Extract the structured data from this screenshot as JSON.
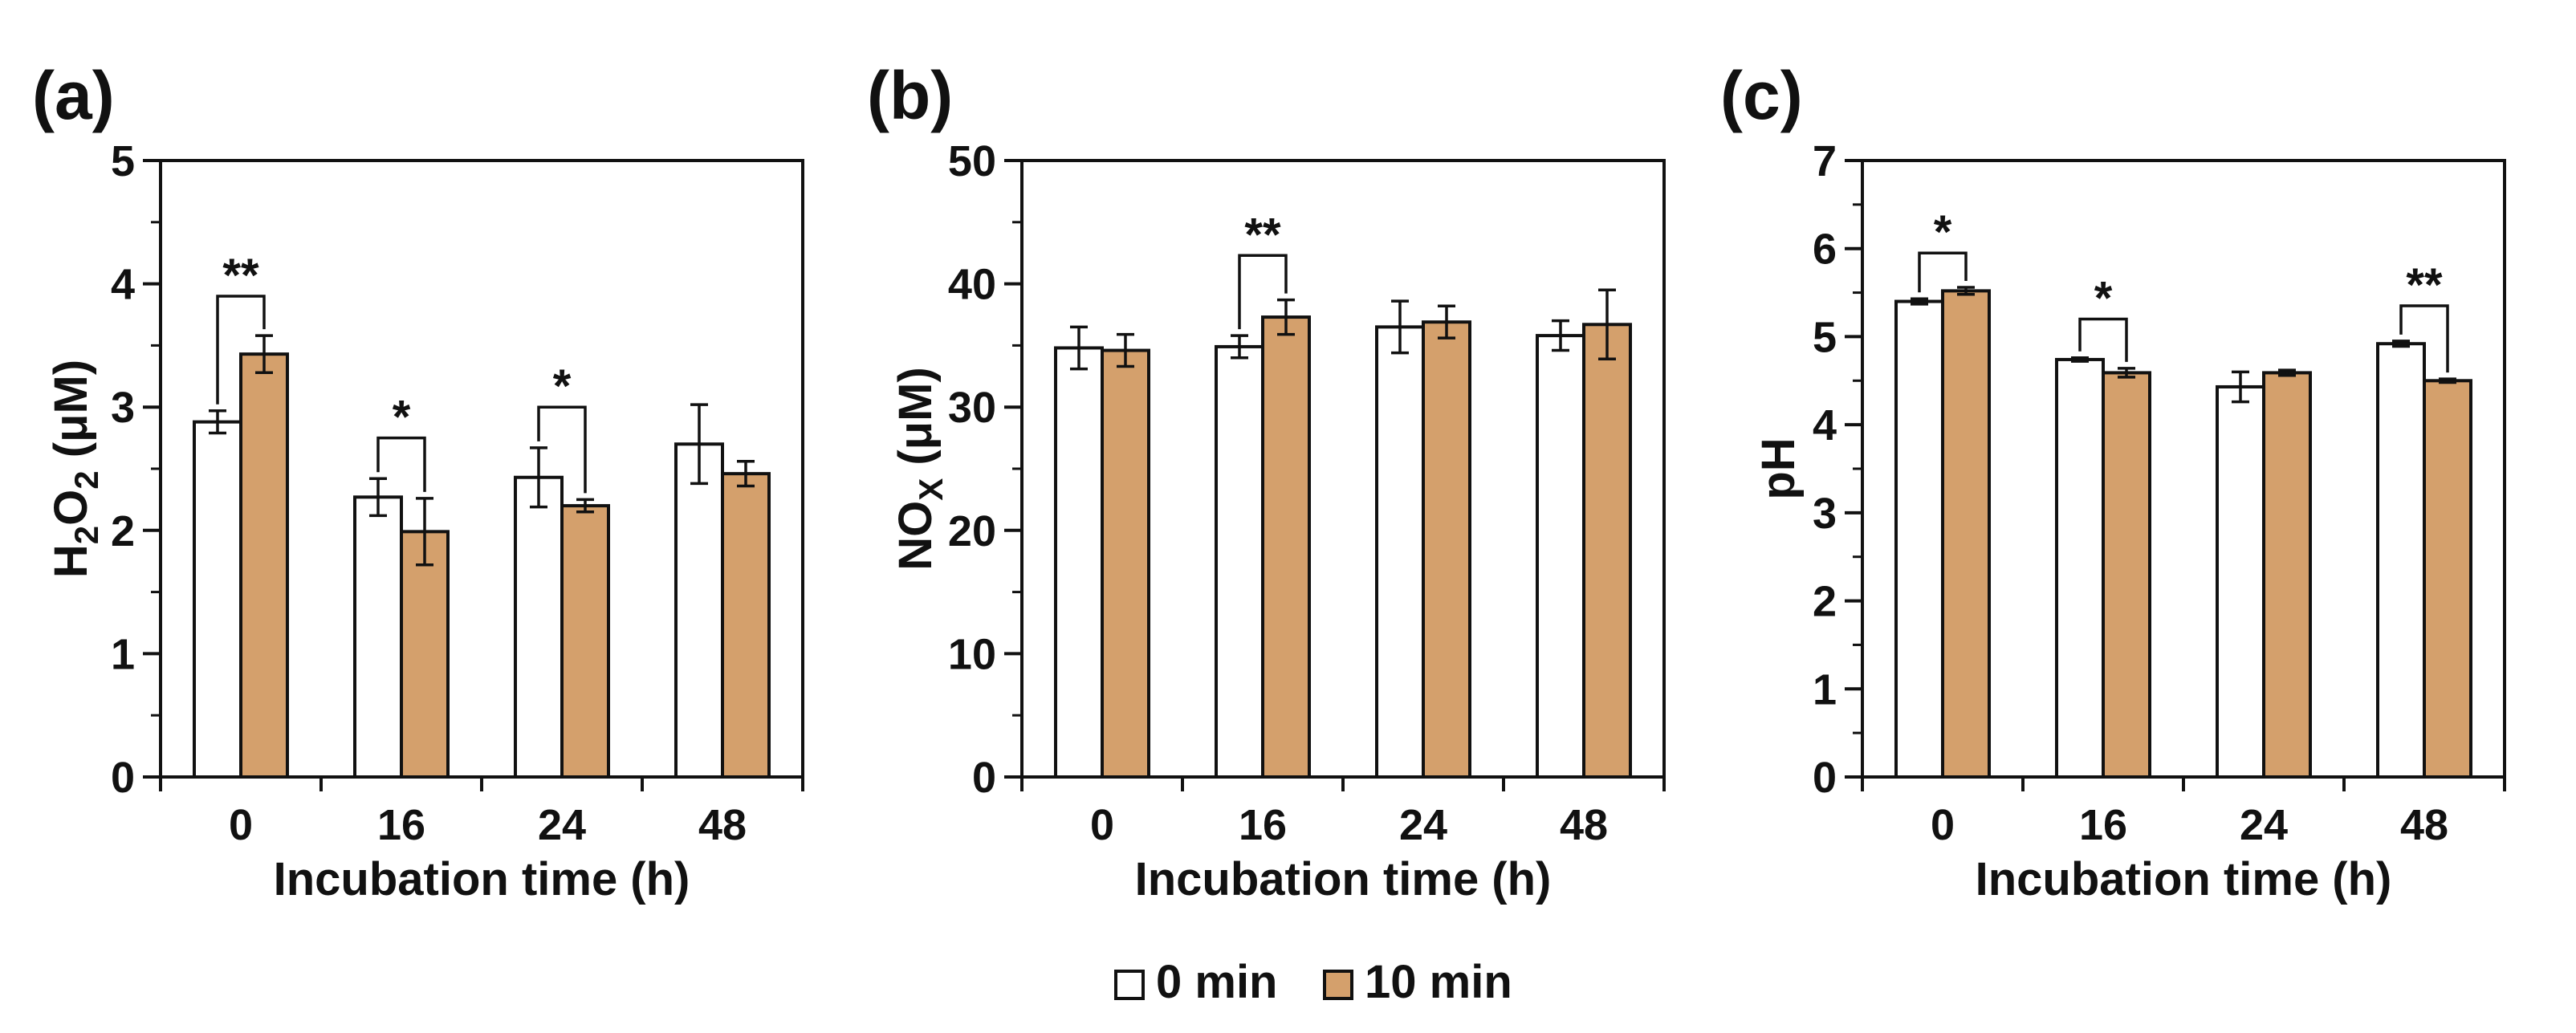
{
  "colors": {
    "series_0": "#ffffff",
    "series_1": "#d4a06c",
    "stroke": "#111111"
  },
  "legend": {
    "items": [
      "0 min",
      "10 min"
    ]
  },
  "chart_data": [
    {
      "type": "bar",
      "panel_label": "(a)",
      "ylabel_main": "H",
      "ylabel_sub1": "2",
      "ylabel_mid": "O",
      "ylabel_sub2": "2",
      "ylabel_tail": " (μM)",
      "xlabel": "Incubation time (h)",
      "categories": [
        "0",
        "16",
        "24",
        "48"
      ],
      "ylim": [
        0,
        5
      ],
      "yticks": [
        "0",
        "1",
        "2",
        "3",
        "4",
        "5"
      ],
      "series": [
        {
          "name": "0 min",
          "values": [
            2.88,
            2.27,
            2.43,
            2.7
          ],
          "errors": [
            0.09,
            0.15,
            0.24,
            0.32
          ]
        },
        {
          "name": "10 min",
          "values": [
            3.43,
            1.99,
            2.2,
            2.46
          ],
          "errors": [
            0.15,
            0.27,
            0.05,
            0.1
          ]
        }
      ],
      "significance": [
        {
          "category": 0,
          "label": "**",
          "level": 3.9
        },
        {
          "category": 1,
          "label": "*",
          "level": 2.75
        },
        {
          "category": 2,
          "label": "*",
          "level": 3.0
        }
      ]
    },
    {
      "type": "bar",
      "panel_label": "(b)",
      "ylabel_main": "NO",
      "ylabel_sub1": "X",
      "ylabel_mid": "",
      "ylabel_sub2": "",
      "ylabel_tail": " (μM)",
      "xlabel": "Incubation time (h)",
      "categories": [
        "0",
        "16",
        "24",
        "48"
      ],
      "ylim": [
        0,
        50
      ],
      "yticks": [
        "0",
        "10",
        "20",
        "30",
        "40",
        "50"
      ],
      "series": [
        {
          "name": "0 min",
          "values": [
            34.8,
            34.9,
            36.5,
            35.8
          ],
          "errors": [
            1.7,
            0.9,
            2.1,
            1.2
          ]
        },
        {
          "name": "10 min",
          "values": [
            34.6,
            37.3,
            36.9,
            36.7
          ],
          "errors": [
            1.3,
            1.4,
            1.3,
            2.8
          ]
        }
      ],
      "significance": [
        {
          "category": 1,
          "label": "**",
          "level": 42.3
        }
      ]
    },
    {
      "type": "bar",
      "panel_label": "(c)",
      "ylabel_main": "pH",
      "ylabel_sub1": "",
      "ylabel_mid": "",
      "ylabel_sub2": "",
      "ylabel_tail": "",
      "xlabel": "Incubation time (h)",
      "categories": [
        "0",
        "16",
        "24",
        "48"
      ],
      "ylim": [
        0,
        7
      ],
      "yticks": [
        "0",
        "1",
        "2",
        "3",
        "4",
        "5",
        "6",
        "7"
      ],
      "series": [
        {
          "name": "0 min",
          "values": [
            5.4,
            4.74,
            4.43,
            4.92
          ],
          "errors": [
            0.03,
            0.02,
            0.17,
            0.03
          ]
        },
        {
          "name": "10 min",
          "values": [
            5.52,
            4.59,
            4.59,
            4.5
          ],
          "errors": [
            0.04,
            0.05,
            0.03,
            0.02
          ]
        }
      ],
      "significance": [
        {
          "category": 0,
          "label": "*",
          "level": 5.95
        },
        {
          "category": 1,
          "label": "*",
          "level": 5.2
        },
        {
          "category": 3,
          "label": "**",
          "level": 5.35
        }
      ]
    }
  ]
}
